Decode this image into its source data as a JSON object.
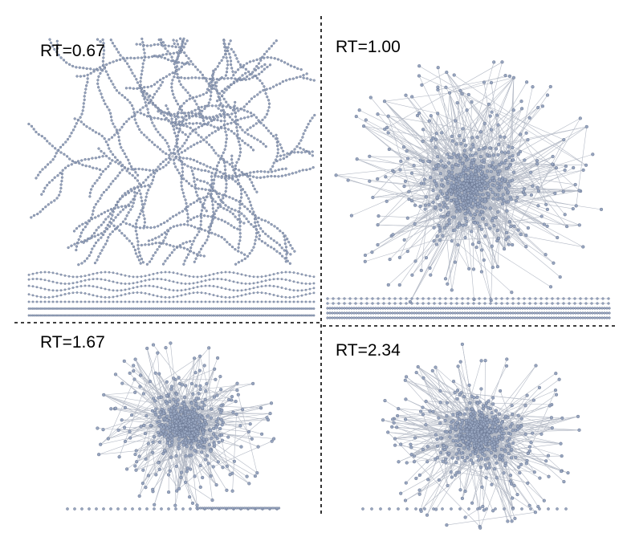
{
  "panels": [
    {
      "label": "RT=0.67"
    },
    {
      "label": "RT=1.00"
    },
    {
      "label": "RT=1.67"
    },
    {
      "label": "RT=2.34"
    }
  ]
}
